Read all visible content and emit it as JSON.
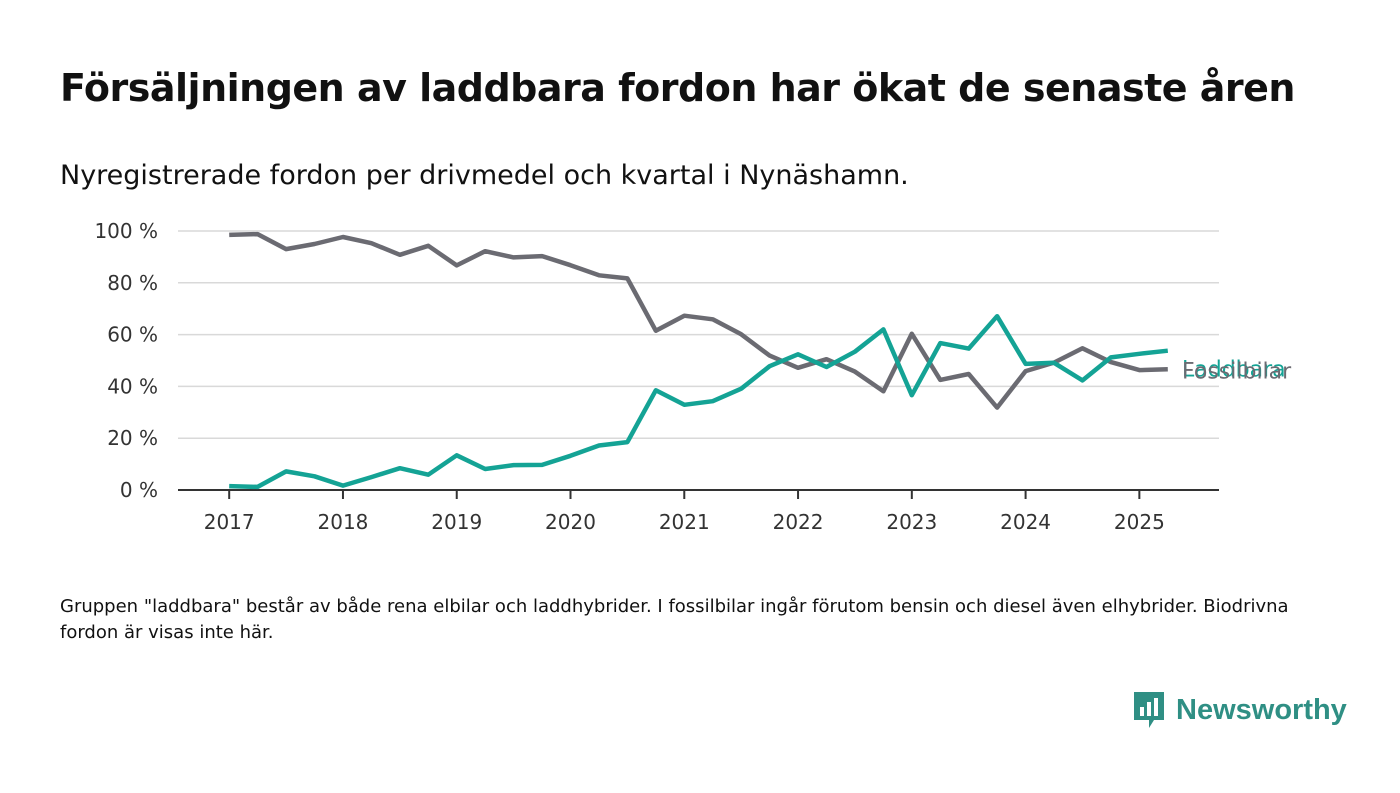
{
  "title": "Försäljningen av laddbara fordon har ökat de senaste åren",
  "subtitle": "Nyregistrerade fordon per drivmedel och kvartal i Nynäshamn.",
  "note": "Gruppen \"laddbara\" består av både rena elbilar och laddhybrider. I fossilbilar ingår förutom bensin och diesel även elhybrider. Biodrivna fordon är visas inte här.",
  "brand": {
    "name": "Newsworthy",
    "icon": "newsworthy-logo-icon",
    "color": "#2f8f84"
  },
  "chart_data": {
    "type": "line",
    "x_unit": "quarter start (decimal year)",
    "x": [
      2017.0,
      2017.25,
      2017.5,
      2017.75,
      2018.0,
      2018.25,
      2018.5,
      2018.75,
      2019.0,
      2019.25,
      2019.5,
      2019.75,
      2020.0,
      2020.25,
      2020.5,
      2020.75,
      2021.0,
      2021.25,
      2021.5,
      2021.75,
      2022.0,
      2022.25,
      2022.5,
      2022.75,
      2023.0,
      2023.25,
      2023.5,
      2023.75,
      2024.0,
      2024.25,
      2024.5,
      2024.75,
      2025.0,
      2025.25
    ],
    "xlim": [
      2016.55,
      2025.7
    ],
    "xticks": [
      2017,
      2018,
      2019,
      2020,
      2021,
      2022,
      2023,
      2024,
      2025
    ],
    "xtick_labels": [
      "2017",
      "2018",
      "2019",
      "2020",
      "2021",
      "2022",
      "2023",
      "2024",
      "2025"
    ],
    "ylim": [
      0,
      100
    ],
    "yticks": [
      0,
      20,
      40,
      60,
      80,
      100
    ],
    "ytick_labels": [
      "0 %",
      "20 %",
      "40 %",
      "60 %",
      "80 %",
      "100 %"
    ],
    "grid": true,
    "series": [
      {
        "name": "Fossilbilar",
        "color": "#6b6b72",
        "values": [
          98.5,
          98.8,
          93.0,
          95.0,
          97.7,
          95.3,
          90.8,
          94.3,
          86.7,
          92.2,
          89.8,
          90.3,
          86.8,
          82.9,
          81.7,
          61.5,
          67.3,
          65.9,
          60.1,
          51.9,
          47.2,
          50.5,
          45.7,
          38.1,
          60.3,
          42.5,
          44.8,
          31.8,
          45.9,
          49.2,
          54.7,
          49.4,
          46.3,
          46.6
        ]
      },
      {
        "name": "Laddbara",
        "color": "#14a395",
        "values": [
          1.5,
          1.2,
          7.2,
          5.3,
          1.7,
          5.0,
          8.4,
          5.9,
          13.4,
          8.1,
          9.6,
          9.7,
          13.2,
          17.2,
          18.5,
          38.5,
          32.9,
          34.3,
          39.1,
          47.8,
          52.4,
          47.5,
          53.4,
          62.0,
          36.6,
          56.7,
          54.6,
          67.1,
          48.7,
          49.1,
          42.3,
          51.2,
          52.6,
          53.8
        ]
      }
    ]
  }
}
